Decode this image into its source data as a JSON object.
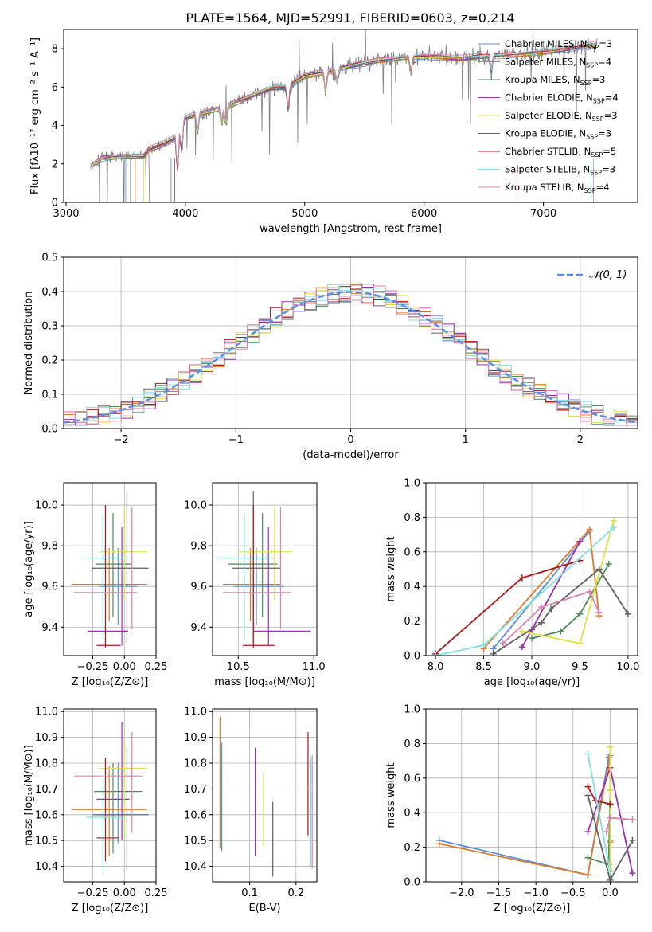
{
  "title": "PLATE=1564, MJD=52991, FIBERID=0603, z=0.214",
  "colors": {
    "data": "#7f7f7f",
    "grid": "#b0b0b0",
    "models": [
      "#5a8fe0",
      "#e07b2a",
      "#4c8c5a",
      "#9a2fb0",
      "#e0e040",
      "#606060",
      "#b01818",
      "#80e0e0",
      "#e080b0"
    ]
  },
  "chart_data": [
    {
      "type": "line",
      "xlabel": "wavelength [Angstrom, rest frame]",
      "ylabel": "Flux [fλ10⁻¹⁷ erg cm⁻² s⁻¹ A⁻¹]",
      "xlim": [
        2980,
        7790
      ],
      "ylim": [
        0,
        9
      ],
      "xticks": [
        3000,
        4000,
        5000,
        6000,
        7000
      ],
      "yticks": [
        0,
        2,
        4,
        6,
        8
      ],
      "legend_position": "upper right",
      "legend": [
        [
          "Chabrier MILES, N",
          "SSP",
          "=3"
        ],
        [
          "Salpeter MILES, N",
          "SSP",
          "=4"
        ],
        [
          "Kroupa MILES, N",
          "SSP",
          "=3"
        ],
        [
          "Chabrier ELODIE, N",
          "SSP",
          "=4"
        ],
        [
          "Salpeter ELODIE, N",
          "SSP",
          "=3"
        ],
        [
          "Kroupa ELODIE, N",
          "SSP",
          "=3"
        ],
        [
          "Chabrier STELIB, N",
          "SSP",
          "=5"
        ],
        [
          "Salpeter STELIB, N",
          "SSP",
          "=3"
        ],
        [
          "Kroupa STELIB, N",
          "SSP",
          "=4"
        ]
      ],
      "continuum": [
        [
          3200,
          1.9
        ],
        [
          3300,
          2.3
        ],
        [
          3500,
          2.4
        ],
        [
          3650,
          2.4
        ],
        [
          3700,
          2.8
        ],
        [
          3800,
          3.0
        ],
        [
          3900,
          3.3
        ],
        [
          3980,
          4.3
        ],
        [
          4100,
          4.6
        ],
        [
          4300,
          4.9
        ],
        [
          4500,
          5.4
        ],
        [
          4700,
          5.9
        ],
        [
          4850,
          6.0
        ],
        [
          5000,
          6.6
        ],
        [
          5200,
          6.8
        ],
        [
          5400,
          7.1
        ],
        [
          5600,
          7.4
        ],
        [
          5800,
          7.5
        ],
        [
          6000,
          7.6
        ],
        [
          6300,
          7.5
        ],
        [
          6500,
          7.6
        ],
        [
          6800,
          7.7
        ],
        [
          7100,
          7.9
        ],
        [
          7400,
          8.2
        ],
        [
          7450,
          8.2
        ]
      ]
    },
    {
      "type": "bar",
      "xlabel": "(data-model)/error",
      "ylabel": "Normed distribution",
      "xlim": [
        -2.5,
        2.5
      ],
      "ylim": [
        0,
        0.5
      ],
      "xticks": [
        -2,
        -1,
        0,
        1,
        2
      ],
      "xtick_labels": [
        "−2",
        "−1",
        "0",
        "1",
        "2"
      ],
      "yticks": [
        0.0,
        0.1,
        0.2,
        0.3,
        0.4,
        0.5
      ],
      "ytick_labels": [
        "0.0",
        "0.1",
        "0.2",
        "0.3",
        "0.4",
        "0.5"
      ],
      "bin_width": 0.1,
      "legend_position": "upper right",
      "legend_label": "𝒩(0, 1)"
    },
    {
      "type": "scatter",
      "xlabel": "Z [log₁₀(Z/Z⊙)]",
      "ylabel": "age  [log₁₀(age/yr)]",
      "xlim": [
        -0.48,
        0.25
      ],
      "ylim": [
        9.26,
        10.11
      ],
      "xticks": [
        -0.25,
        0.0,
        0.25
      ],
      "xtick_labels": [
        "−0.25",
        "0.00",
        "0.25"
      ],
      "yticks": [
        9.4,
        9.6,
        9.8,
        10.0
      ],
      "ytick_labels": [
        "9.4",
        "9.6",
        "9.8",
        "10.0"
      ],
      "points": [
        {
          "x": -0.05,
          "y": 9.6,
          "xl": -0.2,
          "xh": 0.1,
          "yl": 9.41,
          "yh": 9.79
        },
        {
          "x": -0.12,
          "y": 9.61,
          "xl": -0.42,
          "xh": 0.18,
          "yl": 9.43,
          "yh": 9.79
        },
        {
          "x": -0.09,
          "y": 9.71,
          "xl": -0.23,
          "xh": 0.06,
          "yl": 9.45,
          "yh": 9.96
        },
        {
          "x": -0.02,
          "y": 9.38,
          "xl": -0.29,
          "xh": 0.03,
          "yl": 9.31,
          "yh": 9.89
        },
        {
          "x": 0.0,
          "y": 9.77,
          "xl": -0.2,
          "xh": 0.18,
          "yl": 9.53,
          "yh": 9.99
        },
        {
          "x": 0.02,
          "y": 9.69,
          "xl": -0.26,
          "xh": 0.19,
          "yl": 9.32,
          "yh": 10.07
        },
        {
          "x": -0.15,
          "y": 9.31,
          "xl": -0.22,
          "xh": -0.03,
          "yl": 9.3,
          "yh": 10.0
        },
        {
          "x": -0.17,
          "y": 9.74,
          "xl": -0.3,
          "xh": 0.0,
          "yl": 9.34,
          "yh": 9.96
        },
        {
          "x": 0.06,
          "y": 9.57,
          "xl": -0.4,
          "xh": 0.1,
          "yl": 9.39,
          "yh": 9.99
        }
      ]
    },
    {
      "type": "scatter",
      "xlabel": "mass [log₁₀(M/M⊙)]",
      "ylabel": "",
      "xlim": [
        10.33,
        11.02
      ],
      "ylim": [
        9.26,
        10.11
      ],
      "xticks": [
        10.5,
        11.0
      ],
      "xtick_labels": [
        "10.5",
        "11.0"
      ],
      "yticks": [
        9.4,
        9.6,
        9.8,
        10.0
      ],
      "ytick_labels": [
        "9.4",
        "9.6",
        "9.8",
        "10.0"
      ],
      "points": [
        {
          "x": 10.62,
          "y": 9.6,
          "xl": 10.47,
          "xh": 10.8,
          "yl": 9.41,
          "yh": 9.79
        },
        {
          "x": 10.58,
          "y": 9.61,
          "xl": 10.4,
          "xh": 10.78,
          "yl": 9.43,
          "yh": 9.79
        },
        {
          "x": 10.66,
          "y": 9.71,
          "xl": 10.43,
          "xh": 10.76,
          "yl": 9.45,
          "yh": 9.96
        },
        {
          "x": 10.7,
          "y": 9.38,
          "xl": 10.6,
          "xh": 10.98,
          "yl": 9.31,
          "yh": 9.89
        },
        {
          "x": 10.74,
          "y": 9.77,
          "xl": 10.5,
          "xh": 10.86,
          "yl": 9.53,
          "yh": 9.99
        },
        {
          "x": 10.6,
          "y": 9.69,
          "xl": 10.46,
          "xh": 10.78,
          "yl": 9.32,
          "yh": 10.07
        },
        {
          "x": 10.6,
          "y": 9.31,
          "xl": 10.53,
          "xh": 10.74,
          "yl": 9.3,
          "yh": 10.0
        },
        {
          "x": 10.54,
          "y": 9.74,
          "xl": 10.37,
          "xh": 10.72,
          "yl": 9.34,
          "yh": 9.96
        },
        {
          "x": 10.78,
          "y": 9.57,
          "xl": 10.4,
          "xh": 10.85,
          "yl": 9.39,
          "yh": 9.99
        }
      ]
    },
    {
      "type": "line",
      "xlabel": "age  [log₁₀(age/yr)]",
      "ylabel": "mass weight",
      "xlim": [
        7.9,
        10.1
      ],
      "ylim": [
        0,
        1
      ],
      "xticks": [
        8.0,
        8.5,
        9.0,
        9.5,
        10.0
      ],
      "xtick_labels": [
        "8.0",
        "8.5",
        "9.0",
        "9.5",
        "10.0"
      ],
      "yticks": [
        0.0,
        0.2,
        0.4,
        0.6,
        0.8,
        1.0
      ],
      "ytick_labels": [
        "0.0",
        "0.2",
        "0.4",
        "0.6",
        "0.8",
        "1.0"
      ],
      "series": [
        {
          "points": [
            [
              8.6,
              0.04
            ],
            [
              9.6,
              0.72
            ]
          ]
        },
        {
          "points": [
            [
              8.5,
              0.04
            ],
            [
              9.6,
              0.73
            ],
            [
              9.7,
              0.23
            ]
          ]
        },
        {
          "points": [
            [
              9.0,
              0.1
            ],
            [
              9.3,
              0.14
            ],
            [
              9.5,
              0.24
            ],
            [
              9.8,
              0.53
            ]
          ]
        },
        {
          "points": [
            [
              8.9,
              0.05
            ],
            [
              9.0,
              0.15
            ],
            [
              9.5,
              0.66
            ]
          ]
        },
        {
          "points": [
            [
              8.9,
              0.14
            ],
            [
              9.5,
              0.07
            ],
            [
              9.85,
              0.78
            ]
          ]
        },
        {
          "points": [
            [
              8.6,
              0.01
            ],
            [
              9.1,
              0.19
            ],
            [
              9.2,
              0.27
            ],
            [
              9.7,
              0.5
            ],
            [
              10.0,
              0.24
            ]
          ]
        },
        {
          "points": [
            [
              8.0,
              0.01
            ],
            [
              8.9,
              0.45
            ],
            [
              9.5,
              0.55
            ]
          ]
        },
        {
          "points": [
            [
              8.0,
              0.0
            ],
            [
              8.5,
              0.06
            ],
            [
              9.85,
              0.74
            ]
          ]
        },
        {
          "points": [
            [
              8.7,
              0.07
            ],
            [
              9.1,
              0.28
            ],
            [
              9.6,
              0.37
            ],
            [
              9.7,
              0.25
            ]
          ]
        }
      ]
    },
    {
      "type": "scatter",
      "xlabel": "Z [log₁₀(Z/Z⊙)]",
      "ylabel": "mass [log₁₀(M/M⊙)]",
      "xlim": [
        -0.48,
        0.25
      ],
      "ylim": [
        10.34,
        11.01
      ],
      "xticks": [
        -0.25,
        0.0,
        0.25
      ],
      "xtick_labels": [
        "−0.25",
        "0.00",
        "0.25"
      ],
      "yticks": [
        10.4,
        10.5,
        10.6,
        10.7,
        10.8,
        10.9,
        11.0
      ],
      "ytick_labels": [
        "10.4",
        "10.5",
        "10.6",
        "10.7",
        "10.8",
        "10.9",
        "11.0"
      ],
      "points": [
        {
          "x": -0.05,
          "y": 10.6,
          "xl": -0.22,
          "xh": 0.1,
          "yl": 10.49,
          "yh": 10.8
        },
        {
          "x": -0.12,
          "y": 10.62,
          "xl": -0.42,
          "xh": 0.18,
          "yl": 10.44,
          "yh": 10.79
        },
        {
          "x": -0.09,
          "y": 10.69,
          "xl": -0.24,
          "xh": 0.14,
          "yl": 10.45,
          "yh": 10.8
        },
        {
          "x": -0.02,
          "y": 10.66,
          "xl": -0.22,
          "xh": 0.04,
          "yl": 10.5,
          "yh": 10.96
        },
        {
          "x": 0.0,
          "y": 10.78,
          "xl": -0.2,
          "xh": 0.18,
          "yl": 10.51,
          "yh": 10.88
        },
        {
          "x": 0.02,
          "y": 10.6,
          "xl": -0.25,
          "xh": 0.19,
          "yl": 10.38,
          "yh": 10.86
        },
        {
          "x": -0.15,
          "y": 10.51,
          "xl": -0.22,
          "xh": -0.04,
          "yl": 10.42,
          "yh": 10.82
        },
        {
          "x": -0.17,
          "y": 10.59,
          "xl": -0.3,
          "xh": 0.0,
          "yl": 10.37,
          "yh": 10.74
        },
        {
          "x": 0.06,
          "y": 10.75,
          "xl": -0.4,
          "xh": 0.14,
          "yl": 10.53,
          "yh": 10.92
        }
      ]
    },
    {
      "type": "scatter",
      "xlabel": "E(B-V)",
      "ylabel": "",
      "xlim": [
        0.02,
        0.245
      ],
      "ylim": [
        10.34,
        11.01
      ],
      "xticks": [
        0.1,
        0.2
      ],
      "xtick_labels": [
        "0.1",
        "0.2"
      ],
      "yticks": [
        10.4,
        10.5,
        10.6,
        10.7,
        10.8,
        10.9,
        11.0
      ],
      "ytick_labels": [
        "10.4",
        "10.5",
        "10.6",
        "10.7",
        "10.8",
        "10.9",
        "11.0"
      ],
      "segments": [
        {
          "x": 0.04,
          "yl": 10.46,
          "yh": 10.88
        },
        {
          "x": 0.036,
          "yl": 10.47,
          "yh": 10.98
        },
        {
          "x": 0.038,
          "yl": 10.48,
          "yh": 10.86
        },
        {
          "x": 0.112,
          "yl": 10.44,
          "yh": 10.86
        },
        {
          "x": 0.13,
          "yl": 10.48,
          "yh": 10.76
        },
        {
          "x": 0.15,
          "yl": 10.36,
          "yh": 10.65
        },
        {
          "x": 0.226,
          "yl": 10.52,
          "yh": 10.92
        },
        {
          "x": 0.232,
          "yl": 10.4,
          "yh": 10.82
        },
        {
          "x": 0.235,
          "yl": 10.39,
          "yh": 10.83
        }
      ]
    },
    {
      "type": "line",
      "xlabel": "Z [log₁₀(Z/Z⊙)]",
      "ylabel": "mass weight",
      "xlim": [
        -2.48,
        0.37
      ],
      "ylim": [
        0,
        1
      ],
      "xticks": [
        -2.0,
        -1.5,
        -1.0,
        -0.5,
        0.0
      ],
      "xtick_labels": [
        "−2.0",
        "−1.5",
        "−1.0",
        "−0.5",
        "0.0"
      ],
      "yticks": [
        0.0,
        0.2,
        0.4,
        0.6,
        0.8,
        1.0
      ],
      "ytick_labels": [
        "0.0",
        "0.2",
        "0.4",
        "0.6",
        "0.8",
        "1.0"
      ],
      "series": [
        {
          "points": [
            [
              -2.3,
              0.24
            ],
            [
              -0.3,
              0.04
            ],
            [
              -0.02,
              0.72
            ]
          ]
        },
        {
          "points": [
            [
              -2.3,
              0.22
            ],
            [
              -0.3,
              0.04
            ],
            [
              0.0,
              0.73
            ],
            [
              0.0,
              0.23
            ]
          ]
        },
        {
          "points": [
            [
              -0.3,
              0.14
            ],
            [
              -0.02,
              0.1
            ],
            [
              0.0,
              0.53
            ],
            [
              0.0,
              0.24
            ]
          ]
        },
        {
          "points": [
            [
              -0.3,
              0.29
            ],
            [
              0.0,
              0.66
            ],
            [
              0.3,
              0.05
            ]
          ]
        },
        {
          "points": [
            [
              0.0,
              0.78
            ],
            [
              0.0,
              0.53
            ],
            [
              0.0,
              0.07
            ]
          ]
        },
        {
          "points": [
            [
              -0.3,
              0.5
            ],
            [
              0.0,
              0.01
            ],
            [
              0.3,
              0.24
            ]
          ]
        },
        {
          "points": [
            [
              -0.3,
              0.55
            ],
            [
              -0.2,
              0.47
            ],
            [
              0.0,
              0.45
            ]
          ]
        },
        {
          "points": [
            [
              -0.3,
              0.74
            ],
            [
              0.0,
              0.06
            ]
          ]
        },
        {
          "points": [
            [
              -0.05,
              0.29
            ],
            [
              0.0,
              0.37
            ],
            [
              0.3,
              0.36
            ]
          ]
        }
      ]
    }
  ]
}
